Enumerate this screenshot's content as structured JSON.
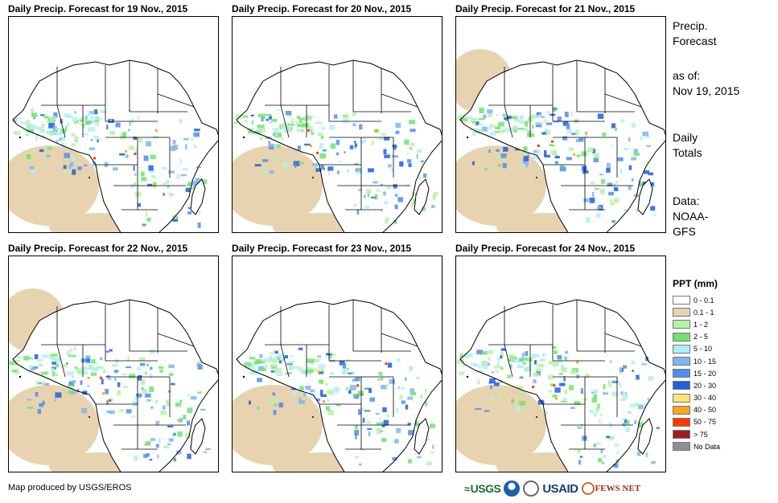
{
  "panels": [
    {
      "title": "Daily Precip. Forecast for 19 Nov., 2015"
    },
    {
      "title": "Daily Precip. Forecast for 20 Nov., 2015"
    },
    {
      "title": "Daily Precip. Forecast for 21 Nov., 2015"
    },
    {
      "title": "Daily Precip. Forecast for 22 Nov., 2015"
    },
    {
      "title": "Daily Precip. Forecast for 23 Nov., 2015"
    },
    {
      "title": "Daily Precip. Forecast for 24 Nov., 2015"
    }
  ],
  "sidebar": {
    "heading_line1": "Precip.",
    "heading_line2": "Forecast",
    "asof_label": "as of:",
    "asof_date": "Nov 19, 2015",
    "totals_line1": "Daily",
    "totals_line2": "Totals",
    "data_line1": "Data:",
    "data_line2": "NOAA-",
    "data_line3": "GFS"
  },
  "legend": {
    "title": "PPT (mm)",
    "items": [
      {
        "label": "0 - 0.1",
        "color": "#ffffff"
      },
      {
        "label": "0.1 - 1",
        "color": "#e8d3b0"
      },
      {
        "label": "1 - 2",
        "color": "#b5f2a6"
      },
      {
        "label": "2 - 5",
        "color": "#6ee46b"
      },
      {
        "label": "5 - 10",
        "color": "#b2eef5"
      },
      {
        "label": "10 - 15",
        "color": "#7fb5f0"
      },
      {
        "label": "15 - 20",
        "color": "#4d8fea"
      },
      {
        "label": "20 - 30",
        "color": "#1e5fe0"
      },
      {
        "label": "30 - 40",
        "color": "#ffe27a"
      },
      {
        "label": "40 - 50",
        "color": "#ffa41c"
      },
      {
        "label": "50 - 75",
        "color": "#ff3a00"
      },
      {
        "label": "> 75",
        "color": "#9c1f1f"
      },
      {
        "label": "No Data",
        "color": "#8f8f8f"
      }
    ]
  },
  "footer": {
    "credit": "Map produced by USGS/EROS",
    "logo_usgs": "USGS",
    "logo_usaid": "USAID",
    "logo_fews": "FEWS NET"
  },
  "colors": {
    "land": "#ffffff",
    "dry_tan": "#e8d3b0",
    "light_green": "#b5f2a6",
    "green": "#6ee46b",
    "light_cyan": "#b2eef5",
    "light_blue": "#7fb5f0",
    "blue": "#4d8fea",
    "dark_blue": "#1e5fe0",
    "orange": "#ffa41c",
    "red": "#ff3a00"
  }
}
